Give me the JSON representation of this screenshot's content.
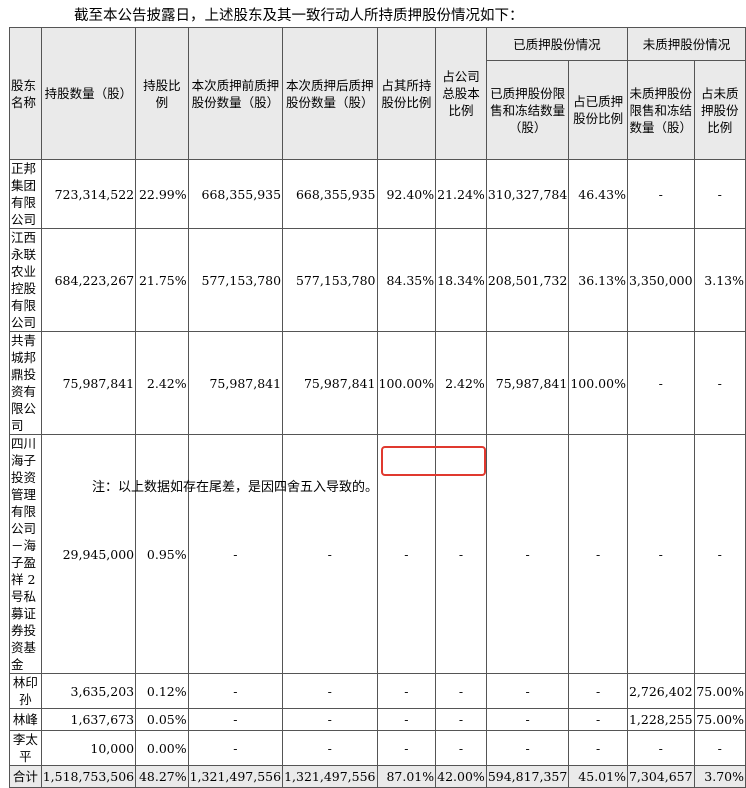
{
  "intro": "截至本公告披露日，上述股东及其一致行动人所持质押股份情况如下：",
  "header": {
    "name": "股东名称",
    "shares_held": "持股数量（股）",
    "holding_ratio": "持股比例",
    "pledged_before": "本次质押前质押股份数量（股）",
    "pledged_after": "本次质押后质押股份数量（股）",
    "pct_of_holdings": "占其所持股份比例",
    "pct_of_total": "占公司总股本比例",
    "pledged_group": "已质押股份情况",
    "unpledged_group": "未质押股份情况",
    "pledged_restricted": "已质押股份限售和冻结数量（股）",
    "pledged_ratio": "占已质押股份比例",
    "unpledged_restricted": "未质押股份限售和冻结数量（股）",
    "unpledged_ratio": "占未质押股份比例"
  },
  "rows": [
    {
      "name": "正邦集团有限公司",
      "shares": "723,314,522",
      "ratio": "22.99%",
      "before": "668,355,935",
      "after": "668,355,935",
      "pct_hold": "92.40%",
      "pct_total": "21.24%",
      "p_restricted": "310,327,784",
      "p_ratio": "46.43%",
      "u_restricted": "-",
      "u_ratio": "-"
    },
    {
      "name": "江西永联农业控股有限公司",
      "shares": "684,223,267",
      "ratio": "21.75%",
      "before": "577,153,780",
      "after": "577,153,780",
      "pct_hold": "84.35%",
      "pct_total": "18.34%",
      "p_restricted": "208,501,732",
      "p_ratio": "36.13%",
      "u_restricted": "3,350,000",
      "u_ratio": "3.13%"
    },
    {
      "name": "共青城邦鼎投资有限公司",
      "shares": "75,987,841",
      "ratio": "2.42%",
      "before": "75,987,841",
      "after": "75,987,841",
      "pct_hold": "100.00%",
      "pct_total": "2.42%",
      "p_restricted": "75,987,841",
      "p_ratio": "100.00%",
      "u_restricted": "-",
      "u_ratio": "-"
    },
    {
      "name": "四川海子投资管理有限公司－海子盈祥 2 号私募证券投资基金",
      "shares": "29,945,000",
      "ratio": "0.95%",
      "before": "-",
      "after": "-",
      "pct_hold": "-",
      "pct_total": "-",
      "p_restricted": "-",
      "p_ratio": "-",
      "u_restricted": "-",
      "u_ratio": "-"
    },
    {
      "name": "林印孙",
      "shares": "3,635,203",
      "ratio": "0.12%",
      "before": "-",
      "after": "-",
      "pct_hold": "-",
      "pct_total": "-",
      "p_restricted": "-",
      "p_ratio": "-",
      "u_restricted": "2,726,402",
      "u_ratio": "75.00%"
    },
    {
      "name": "林峰",
      "shares": "1,637,673",
      "ratio": "0.05%",
      "before": "-",
      "after": "-",
      "pct_hold": "-",
      "pct_total": "-",
      "p_restricted": "-",
      "p_ratio": "-",
      "u_restricted": "1,228,255",
      "u_ratio": "75.00%"
    },
    {
      "name": "李太平",
      "shares": "10,000",
      "ratio": "0.00%",
      "before": "-",
      "after": "-",
      "pct_hold": "-",
      "pct_total": "-",
      "p_restricted": "-",
      "p_ratio": "-",
      "u_restricted": "-",
      "u_ratio": "-"
    }
  ],
  "total": {
    "name": "合计",
    "shares": "1,518,753,506",
    "ratio": "48.27%",
    "before": "1,321,497,556",
    "after": "1,321,497,556",
    "pct_hold": "87.01%",
    "pct_total": "42.00%",
    "p_restricted": "594,817,357",
    "p_ratio": "45.01%",
    "u_restricted": "7,304,657",
    "u_ratio": "3.70%"
  },
  "note": "注：以上数据如存在尾差，是因四舍五入导致的。",
  "highlight_color": "#e0392f"
}
